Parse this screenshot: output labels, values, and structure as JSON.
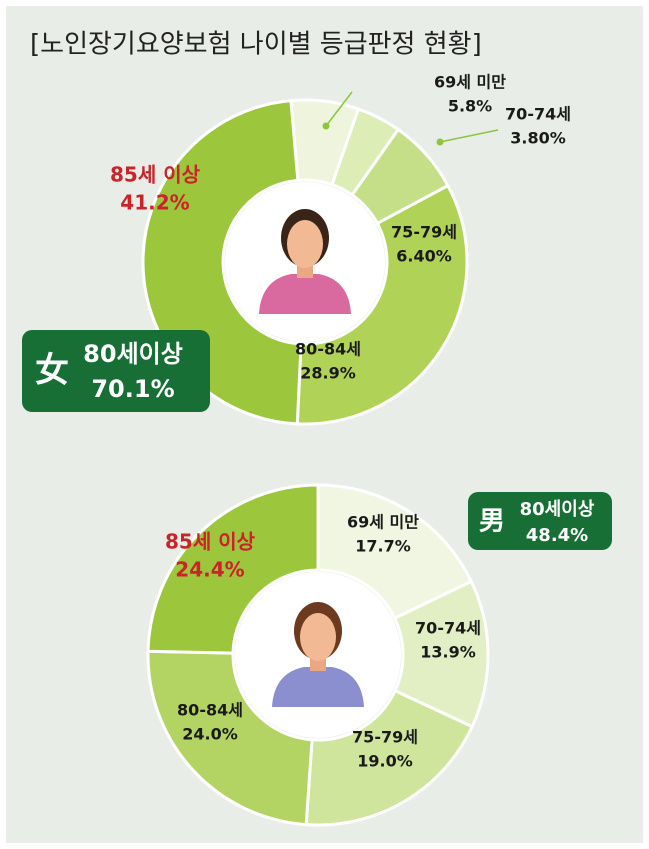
{
  "title": "[노인장기요양보험 나이별 등급판정 현황]",
  "chart_data": [
    {
      "type": "donut",
      "categories": [
        "69세 미만",
        "70-74세",
        "75-79세",
        "80-84세",
        "85세 이상"
      ],
      "values": [
        5.8,
        3.8,
        6.4,
        28.9,
        41.2
      ],
      "value_labels": [
        "5.8%",
        "3.80%",
        "6.40%",
        "28.9%",
        "41.2%"
      ],
      "colors": [
        "#eef5dc",
        "#dcedb5",
        "#c4df88",
        "#afd257",
        "#9cc63b"
      ],
      "badge": {
        "symbol": "女",
        "label": "80세이상",
        "value": 70.1,
        "value_label": "70.1%"
      }
    },
    {
      "type": "donut",
      "categories": [
        "69세 미만",
        "70-74세",
        "75-79세",
        "80-84세",
        "85세 이상"
      ],
      "values": [
        17.7,
        13.9,
        19.0,
        24.0,
        24.4
      ],
      "value_labels": [
        "17.7%",
        "13.9%",
        "19.0%",
        "24.0%",
        "24.4%"
      ],
      "colors": [
        "#f1f6e2",
        "#e2efc4",
        "#cfe59b",
        "#b3d463",
        "#9cc63b"
      ],
      "badge": {
        "symbol": "男",
        "label": "80세이상",
        "value": 48.4,
        "value_label": "48.4%"
      }
    }
  ]
}
